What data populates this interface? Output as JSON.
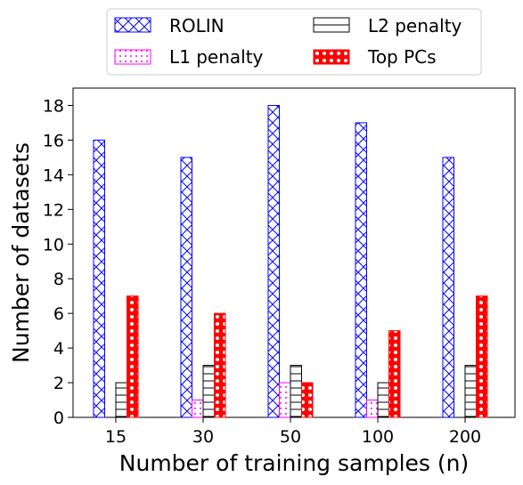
{
  "chart_data": {
    "type": "bar",
    "categories": [
      "15",
      "30",
      "50",
      "100",
      "200"
    ],
    "series": [
      {
        "name": "ROLIN",
        "values": [
          16,
          15,
          18,
          17,
          15
        ],
        "color": "#0000ff",
        "pattern": "cross-hatch"
      },
      {
        "name": "L1 penalty",
        "values": [
          0,
          1,
          2,
          1,
          0
        ],
        "color": "#ff00ff",
        "pattern": "dots"
      },
      {
        "name": "L2 penalty",
        "values": [
          2,
          3,
          3,
          2,
          3
        ],
        "color": "#000000",
        "pattern": "horizontal-lines"
      },
      {
        "name": "Top PCs",
        "values": [
          7,
          6,
          2,
          5,
          7
        ],
        "color": "#ff0000",
        "pattern": "circles"
      }
    ],
    "xlabel": "Number of training samples (n)",
    "ylabel": "Number of datasets",
    "ylim": [
      0,
      19
    ],
    "yticks": [
      "0",
      "2",
      "4",
      "6",
      "8",
      "10",
      "12",
      "14",
      "16",
      "18"
    ],
    "grid": false,
    "legend": {
      "placement": "top",
      "columns": 2
    }
  }
}
